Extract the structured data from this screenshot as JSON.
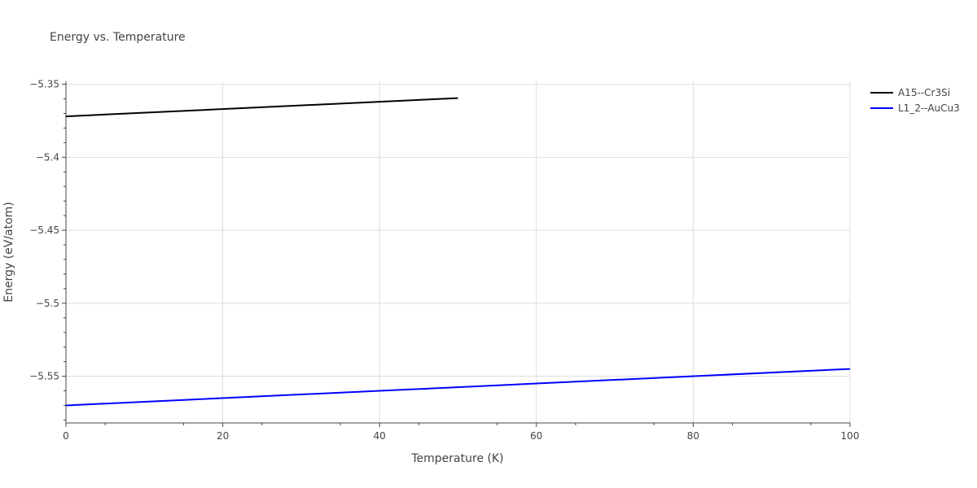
{
  "chart_data": {
    "type": "line",
    "title": "Energy vs. Temperature",
    "xlabel": "Temperature (K)",
    "ylabel": "Energy (eV/atom)",
    "xlim": [
      0,
      100
    ],
    "ylim": [
      -5.582,
      -5.348
    ],
    "x_ticks": [
      0,
      20,
      40,
      60,
      80,
      100
    ],
    "x_tick_labels": [
      "0",
      "20",
      "40",
      "60",
      "80",
      "100"
    ],
    "y_ticks": [
      -5.35,
      -5.4,
      -5.45,
      -5.5,
      -5.55
    ],
    "y_tick_labels": [
      "−5.35",
      "−5.4",
      "−5.45",
      "−5.5",
      "−5.55"
    ],
    "grid": true,
    "legend_position": "top-right",
    "series": [
      {
        "name": "A15--Cr3Si",
        "color": "#000000",
        "x": [
          0,
          50
        ],
        "y": [
          -5.372,
          -5.3595
        ]
      },
      {
        "name": "L1_2--AuCu3",
        "color": "#0000ff",
        "x": [
          0,
          100
        ],
        "y": [
          -5.57,
          -5.545
        ]
      }
    ]
  }
}
